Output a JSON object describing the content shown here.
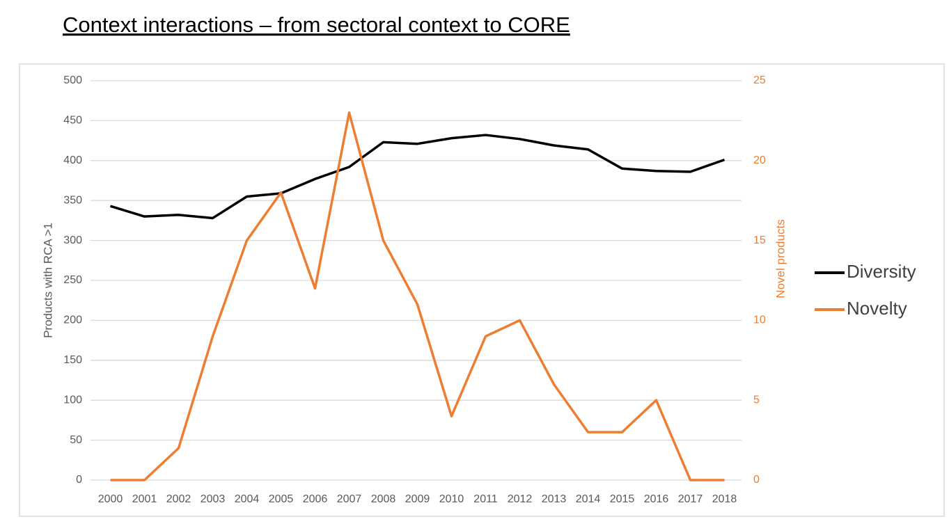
{
  "chart_data": {
    "type": "line",
    "title": "Context interactions – from sectoral context to CORE",
    "ylabel": "Products with RCA >1",
    "y2label": "Novel products",
    "categories": [
      "2000",
      "2001",
      "2002",
      "2003",
      "2004",
      "2005",
      "2006",
      "2007",
      "2008",
      "2009",
      "2010",
      "2011",
      "2012",
      "2013",
      "2014",
      "2015",
      "2016",
      "2017",
      "2018"
    ],
    "series": [
      {
        "name": "Diversity",
        "color": "#000000",
        "values": [
          343,
          330,
          332,
          328,
          355,
          359,
          377,
          392,
          423,
          421,
          428,
          432,
          427,
          419,
          414,
          390,
          387,
          386,
          401
        ]
      },
      {
        "name": "Novelty",
        "color": "#ed7d31",
        "axis": "y2",
        "values": [
          0,
          0,
          2,
          9,
          15,
          18,
          12,
          23,
          15,
          11,
          4,
          9,
          10,
          6,
          3,
          3,
          5,
          0,
          0
        ]
      }
    ],
    "ylim": [
      0,
      500
    ],
    "yticks": [
      0,
      50,
      100,
      150,
      200,
      250,
      300,
      350,
      400,
      450,
      500
    ],
    "y2lim": [
      0,
      25
    ],
    "y2ticks": [
      0,
      5,
      10,
      15,
      20,
      25
    ],
    "grid": true,
    "legend": "right"
  }
}
